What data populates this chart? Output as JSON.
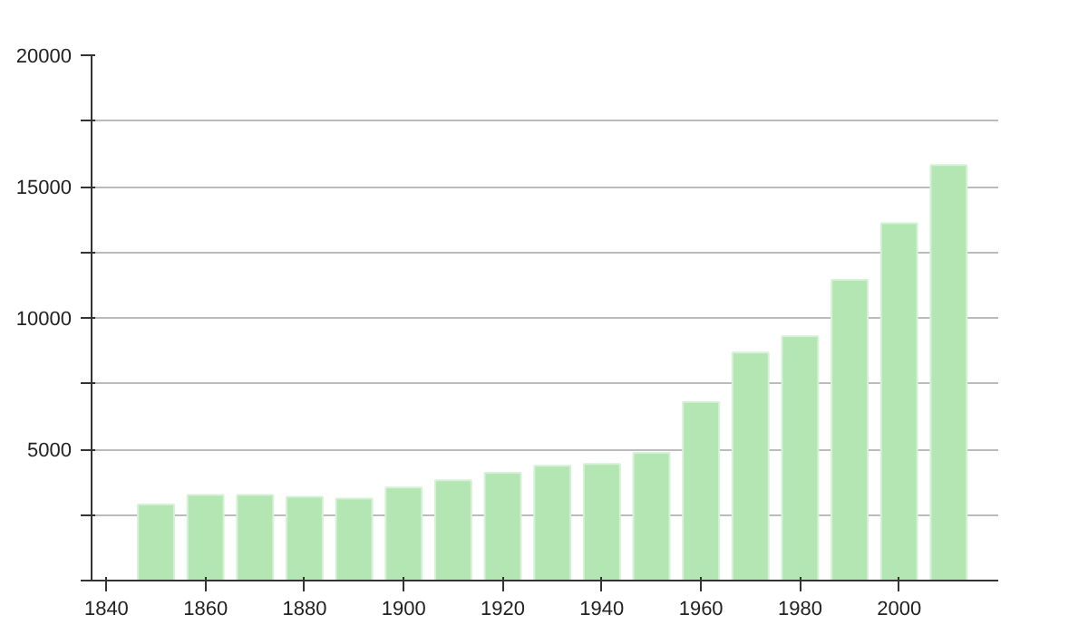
{
  "chart_data": {
    "type": "bar",
    "x": [
      1850,
      1860,
      1870,
      1880,
      1890,
      1900,
      1910,
      1920,
      1930,
      1940,
      1950,
      1960,
      1970,
      1980,
      1990,
      2000,
      2010
    ],
    "values": [
      2900,
      3260,
      3260,
      3190,
      3120,
      3540,
      3820,
      4100,
      4370,
      4440,
      4860,
      6800,
      8680,
      9300,
      11450,
      13600,
      15820
    ],
    "color": "#b3e6b3",
    "xlim": [
      1837,
      2020
    ],
    "xticks": [
      1840,
      1860,
      1880,
      1900,
      1920,
      1940,
      1960,
      1980,
      2000
    ],
    "ylim": [
      0,
      20000
    ],
    "yticks": [
      {
        "value": 0,
        "label": null
      },
      {
        "value": 2500,
        "label": null
      },
      5000,
      {
        "value": 7500,
        "label": null
      },
      10000,
      {
        "value": 12500,
        "label": null
      },
      15000,
      {
        "value": 17500,
        "label": null
      },
      20000
    ],
    "grid": "y"
  }
}
